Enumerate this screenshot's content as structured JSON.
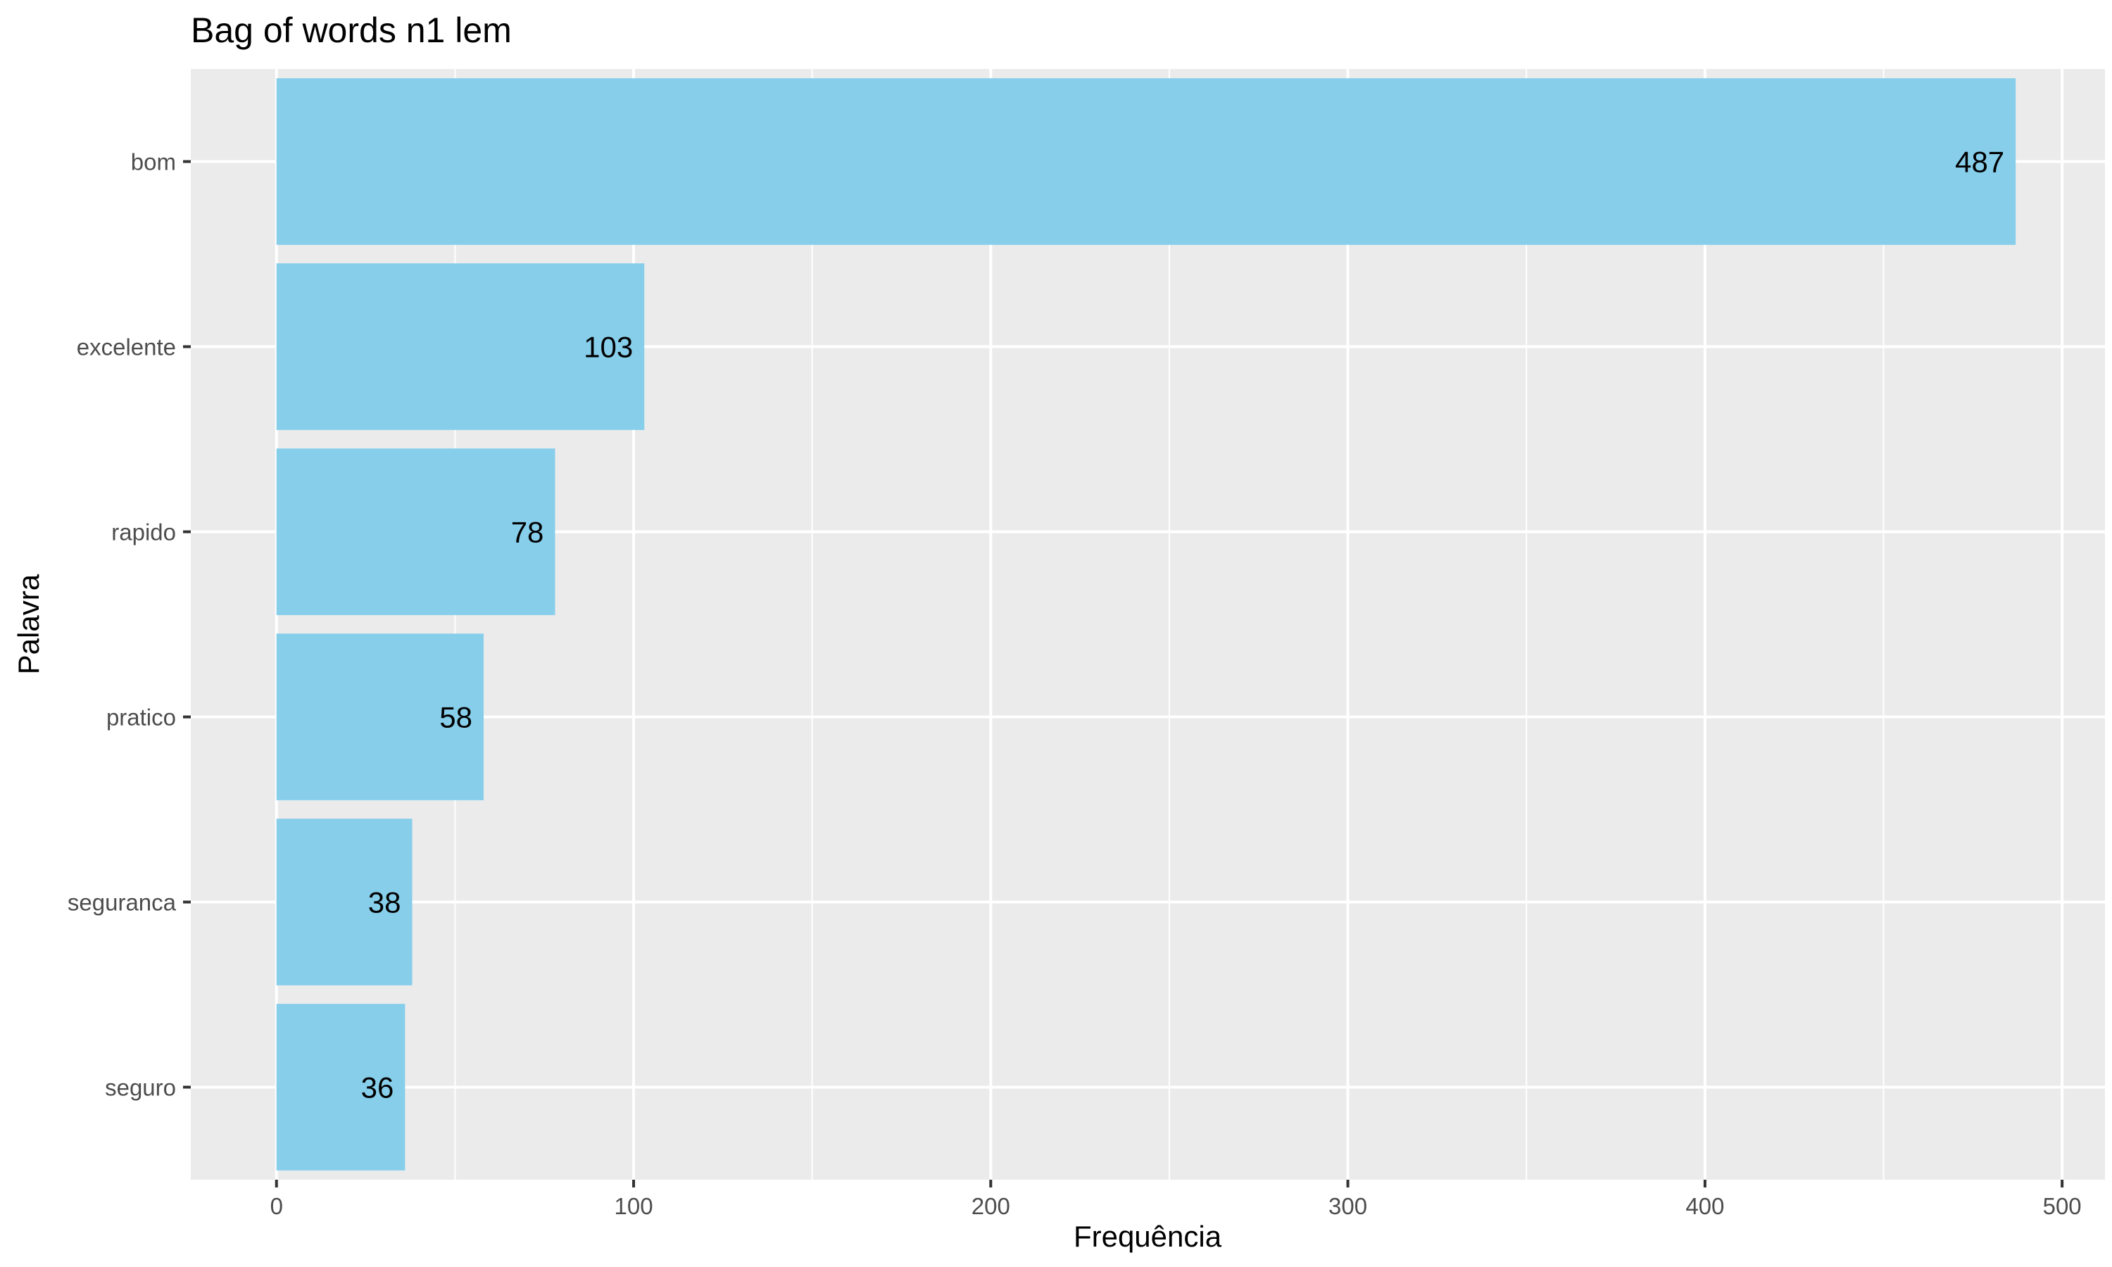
{
  "chart_data": {
    "type": "bar",
    "orientation": "horizontal",
    "title": "Bag of words n1 lem",
    "xlabel": "Frequência",
    "ylabel": "Palavra",
    "categories": [
      "bom",
      "excelente",
      "rapido",
      "pratico",
      "seguranca",
      "seguro"
    ],
    "values": [
      487,
      103,
      78,
      58,
      38,
      36
    ],
    "data_labels": [
      "487",
      "103",
      "78",
      "58",
      "38",
      "36"
    ],
    "xlim": [
      -24,
      512
    ],
    "x_ticks": [
      0,
      100,
      200,
      300,
      400,
      500
    ],
    "x_tick_labels": [
      "0",
      "100",
      "200",
      "300",
      "400",
      "500"
    ],
    "x_minor_ticks": [
      50,
      150,
      250,
      350,
      450
    ],
    "grid": true,
    "legend": "none",
    "colors": {
      "bar": "#87ceeb",
      "panel_background": "#ebebeb",
      "grid_line": "#ffffff"
    }
  }
}
